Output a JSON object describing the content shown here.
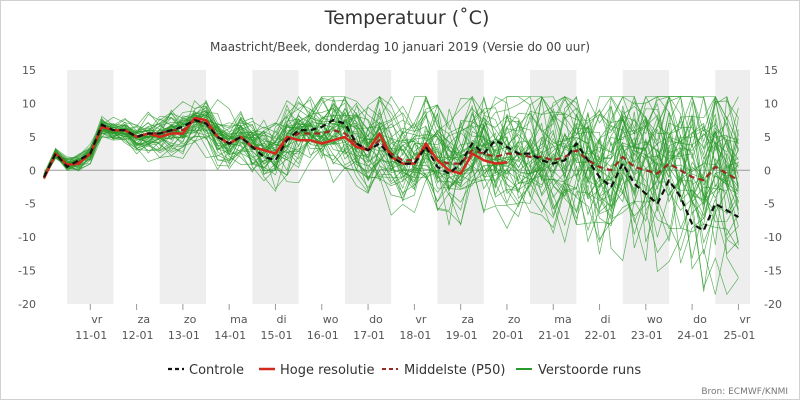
{
  "chart_data": {
    "type": "line",
    "title": "Temperatuur (˚C)",
    "subtitle": "Maastricht/Beek, donderdag 10 januari 2019 (Versie do 00 uur)",
    "source": "Bron: ECMWF/KNMI",
    "y_range": [
      -20,
      15
    ],
    "y_ticks": [
      "15",
      "10",
      "5",
      "0",
      "-5",
      "-10",
      "-15",
      "-20"
    ],
    "x_range_days": [
      10.0,
      25.25
    ],
    "day_labels": [
      {
        "day": 11,
        "weekday": "vr",
        "date": "11-01"
      },
      {
        "day": 12,
        "weekday": "za",
        "date": "12-01"
      },
      {
        "day": 13,
        "weekday": "zo",
        "date": "13-01"
      },
      {
        "day": 14,
        "weekday": "ma",
        "date": "14-01"
      },
      {
        "day": 15,
        "weekday": "di",
        "date": "15-01"
      },
      {
        "day": 16,
        "weekday": "wo",
        "date": "16-01"
      },
      {
        "day": 17,
        "weekday": "do",
        "date": "17-01"
      },
      {
        "day": 18,
        "weekday": "vr",
        "date": "18-01"
      },
      {
        "day": 19,
        "weekday": "za",
        "date": "19-01"
      },
      {
        "day": 20,
        "weekday": "zo",
        "date": "20-01"
      },
      {
        "day": 21,
        "weekday": "ma",
        "date": "21-01"
      },
      {
        "day": 22,
        "weekday": "di",
        "date": "22-01"
      },
      {
        "day": 23,
        "weekday": "wo",
        "date": "23-01"
      },
      {
        "day": 24,
        "weekday": "do",
        "date": "24-01"
      },
      {
        "day": 25,
        "weekday": "vr",
        "date": "25-01"
      }
    ],
    "shaded_days": [
      11,
      13,
      15,
      17,
      19,
      21,
      23,
      25
    ],
    "legend": [
      "Controle",
      "Hoge resolutie",
      "Middelste (P50)",
      "Verstoorde runs"
    ],
    "series": [
      {
        "name": "Controle",
        "style": "dashed",
        "color": "#111111",
        "x": [
          10.0,
          10.25,
          10.5,
          10.75,
          11.0,
          11.25,
          11.5,
          11.75,
          12.0,
          12.25,
          12.5,
          12.75,
          13.0,
          13.25,
          13.5,
          13.75,
          14.0,
          14.25,
          14.5,
          14.75,
          15.0,
          15.25,
          15.5,
          15.75,
          16.0,
          16.25,
          16.5,
          16.75,
          17.0,
          17.25,
          17.5,
          17.75,
          18.0,
          18.25,
          18.5,
          18.75,
          19.0,
          19.25,
          19.5,
          19.75,
          20.0,
          20.25,
          20.5,
          20.75,
          21.0,
          21.25,
          21.5,
          21.75,
          22.0,
          22.25,
          22.5,
          22.75,
          23.0,
          23.25,
          23.5,
          23.75,
          24.0,
          24.25,
          24.5,
          24.75,
          25.0
        ],
        "y": [
          -1.0,
          2.5,
          0.5,
          1.5,
          2.5,
          6.8,
          6.0,
          6.0,
          5.0,
          5.5,
          5.5,
          6.0,
          6.5,
          7.5,
          7.0,
          5.0,
          4.0,
          5.0,
          3.5,
          2.0,
          1.5,
          4.5,
          6.0,
          6.0,
          6.5,
          7.5,
          7.0,
          4.0,
          3.0,
          4.0,
          2.0,
          1.0,
          1.0,
          3.5,
          0.5,
          -0.5,
          1.0,
          4.0,
          2.5,
          4.5,
          3.5,
          2.5,
          2.5,
          1.5,
          1.0,
          1.5,
          4.0,
          1.5,
          -1.0,
          -2.5,
          1.0,
          -2.0,
          -3.5,
          -5.0,
          -1.5,
          -4.0,
          -8.0,
          -9.0,
          -5.0,
          -6.0,
          -7.0
        ]
      },
      {
        "name": "Hoge resolutie",
        "style": "solid",
        "color": "#d42a1e",
        "x": [
          10.0,
          10.25,
          10.5,
          10.75,
          11.0,
          11.25,
          11.5,
          11.75,
          12.0,
          12.25,
          12.5,
          12.75,
          13.0,
          13.25,
          13.5,
          13.75,
          14.0,
          14.25,
          14.5,
          14.75,
          15.0,
          15.25,
          15.5,
          15.75,
          16.0,
          16.25,
          16.5,
          16.75,
          17.0,
          17.25,
          17.5,
          17.75,
          18.0,
          18.25,
          18.5,
          18.75,
          19.0,
          19.25,
          19.5,
          19.75,
          20.0
        ],
        "y": [
          -1.2,
          2.5,
          0.8,
          1.0,
          2.5,
          6.5,
          6.0,
          6.0,
          5.0,
          5.5,
          5.0,
          5.5,
          5.5,
          7.8,
          7.5,
          5.0,
          4.0,
          5.0,
          3.5,
          3.0,
          2.5,
          5.0,
          4.5,
          4.5,
          4.0,
          4.5,
          5.0,
          3.5,
          3.0,
          5.5,
          2.0,
          1.0,
          1.0,
          4.0,
          1.5,
          0.0,
          -0.5,
          2.5,
          1.5,
          1.0,
          1.2
        ]
      },
      {
        "name": "Middelste (P50)",
        "style": "dashed",
        "color": "#9a2a22",
        "x": [
          10.0,
          10.25,
          10.5,
          10.75,
          11.0,
          11.25,
          11.5,
          11.75,
          12.0,
          12.25,
          12.5,
          12.75,
          13.0,
          13.25,
          13.5,
          13.75,
          14.0,
          14.25,
          14.5,
          14.75,
          15.0,
          15.25,
          15.5,
          15.75,
          16.0,
          16.25,
          16.5,
          16.75,
          17.0,
          17.25,
          17.5,
          17.75,
          18.0,
          18.25,
          18.5,
          18.75,
          19.0,
          19.25,
          19.5,
          19.75,
          20.0,
          20.25,
          20.5,
          20.75,
          21.0,
          21.25,
          21.5,
          21.75,
          22.0,
          22.25,
          22.5,
          22.75,
          23.0,
          23.25,
          23.5,
          23.75,
          24.0,
          24.25,
          24.5,
          24.75,
          25.0
        ],
        "y": [
          -1.0,
          2.5,
          0.8,
          1.2,
          2.5,
          6.5,
          6.0,
          6.0,
          5.0,
          5.5,
          5.5,
          6.0,
          6.0,
          7.5,
          7.0,
          5.0,
          4.0,
          5.0,
          3.5,
          3.0,
          2.5,
          4.5,
          5.5,
          5.5,
          5.5,
          6.0,
          5.5,
          4.0,
          3.0,
          4.5,
          2.5,
          1.5,
          1.5,
          3.5,
          1.5,
          1.0,
          1.0,
          3.0,
          2.5,
          2.0,
          2.5,
          2.5,
          2.0,
          2.0,
          1.5,
          2.0,
          3.0,
          1.5,
          0.5,
          0.0,
          2.0,
          0.5,
          0.0,
          -0.5,
          1.0,
          0.0,
          -1.0,
          -1.5,
          0.5,
          -0.5,
          -1.5
        ]
      }
    ]
  },
  "ensemble": {
    "name": "Verstoorde runs",
    "color": "#2a9a2a",
    "count": 50,
    "seed": 20190110
  }
}
